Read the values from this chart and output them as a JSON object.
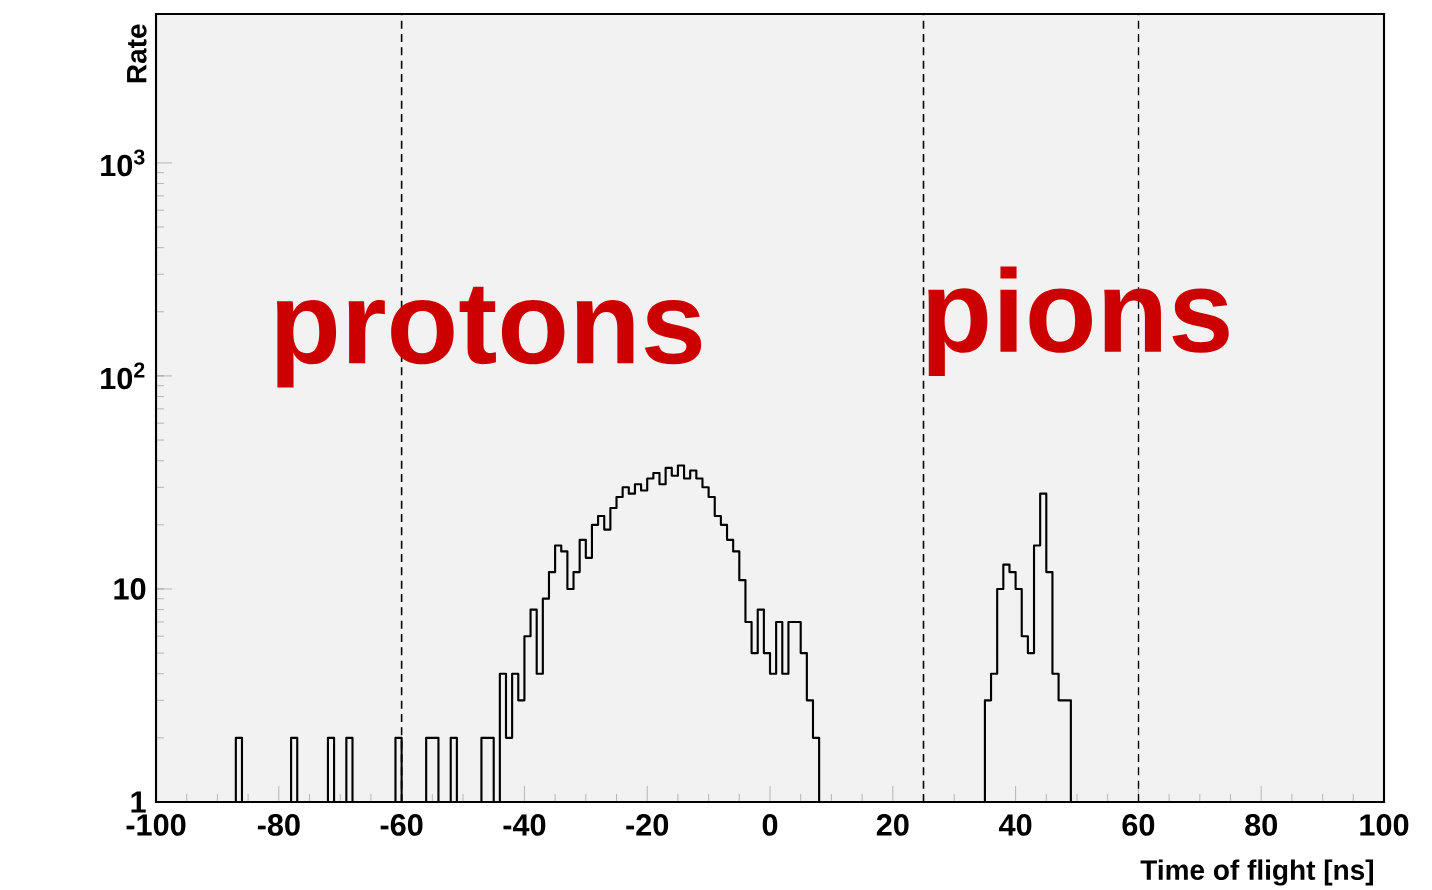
{
  "chart_data": {
    "type": "histogram",
    "xlabel": "Time of flight [ns]",
    "ylabel": "Rate",
    "bins": [
      -87,
      -86,
      -85,
      -84,
      -83,
      -82,
      -81,
      -80,
      -79,
      -78,
      -77,
      -76,
      -75,
      -74,
      -73,
      -72,
      -71,
      -70,
      -69,
      -68,
      -67,
      -66,
      -65,
      -64,
      -63,
      -62,
      -61,
      -60,
      -59,
      -58,
      -57,
      -56,
      -55,
      -54,
      -53,
      -52,
      -51,
      -50,
      -49,
      -48,
      -47,
      -46,
      -45,
      -44,
      -43,
      -42,
      -41,
      -40,
      -39,
      -38,
      -37,
      -36,
      -35,
      -34,
      -33,
      -32,
      -31,
      -30,
      -29,
      -28,
      -27,
      -26,
      -25,
      -24,
      -23,
      -22,
      -21,
      -20,
      -19,
      -18,
      -17,
      -16,
      -15,
      -14,
      -13,
      -12,
      -11,
      -10,
      -9,
      -8,
      -7,
      -6,
      -5,
      -4,
      -3,
      -2,
      -1,
      0,
      1,
      2,
      3,
      4,
      5,
      6,
      7,
      8,
      9,
      10,
      11,
      12,
      13,
      14,
      15,
      16,
      17,
      18,
      19,
      20,
      21,
      22,
      23,
      24,
      25,
      26,
      27,
      28,
      29,
      30,
      31,
      32,
      33,
      34,
      35,
      36,
      37,
      38,
      39,
      40,
      41,
      42,
      43,
      44,
      45,
      46,
      47,
      48,
      49
    ],
    "values": [
      2,
      null,
      null,
      null,
      null,
      null,
      null,
      null,
      null,
      2,
      null,
      null,
      null,
      null,
      null,
      2,
      null,
      null,
      2,
      null,
      null,
      null,
      null,
      null,
      null,
      null,
      2,
      null,
      null,
      null,
      null,
      2,
      2,
      null,
      null,
      2,
      null,
      null,
      null,
      null,
      2,
      2,
      null,
      4,
      2,
      4,
      3,
      6,
      8,
      4,
      9,
      12,
      16,
      15,
      10,
      12,
      17,
      14,
      20,
      22,
      19,
      24,
      27,
      30,
      28,
      31,
      29,
      33,
      35,
      31,
      37,
      34,
      38,
      33,
      36,
      33,
      30,
      27,
      22,
      20,
      17,
      15,
      11,
      7,
      5,
      8,
      5,
      4,
      7,
      4,
      7,
      7,
      5,
      3,
      2,
      null,
      null,
      null,
      null,
      null,
      null,
      null,
      null,
      null,
      null,
      null,
      null,
      null,
      null,
      null,
      null,
      null,
      null,
      null,
      null,
      null,
      null,
      null,
      null,
      null,
      null,
      null,
      3,
      4,
      10,
      13,
      12,
      10,
      6,
      5,
      16,
      28,
      12,
      4,
      3,
      3
    ],
    "color": "#000000",
    "log": "y",
    "xlim": [
      -100,
      100
    ],
    "ylim": [
      1,
      5000
    ],
    "xticks": [
      -100,
      -80,
      -60,
      -40,
      -20,
      0,
      20,
      40,
      60,
      80,
      100
    ],
    "yticks": [
      1,
      10,
      {
        "value": 100,
        "label": "10$^{2}$"
      },
      {
        "value": 1000,
        "label": "10$^{3}$"
      }
    ],
    "ref_lines": [
      {
        "axis": "x",
        "value": -60,
        "line_style": "dashed"
      },
      {
        "axis": "x",
        "value": 25,
        "line_style": "dashed"
      },
      {
        "axis": "x",
        "value": 60,
        "line_style": "dashed"
      }
    ],
    "annotations": [
      "protons",
      "pions"
    ]
  }
}
